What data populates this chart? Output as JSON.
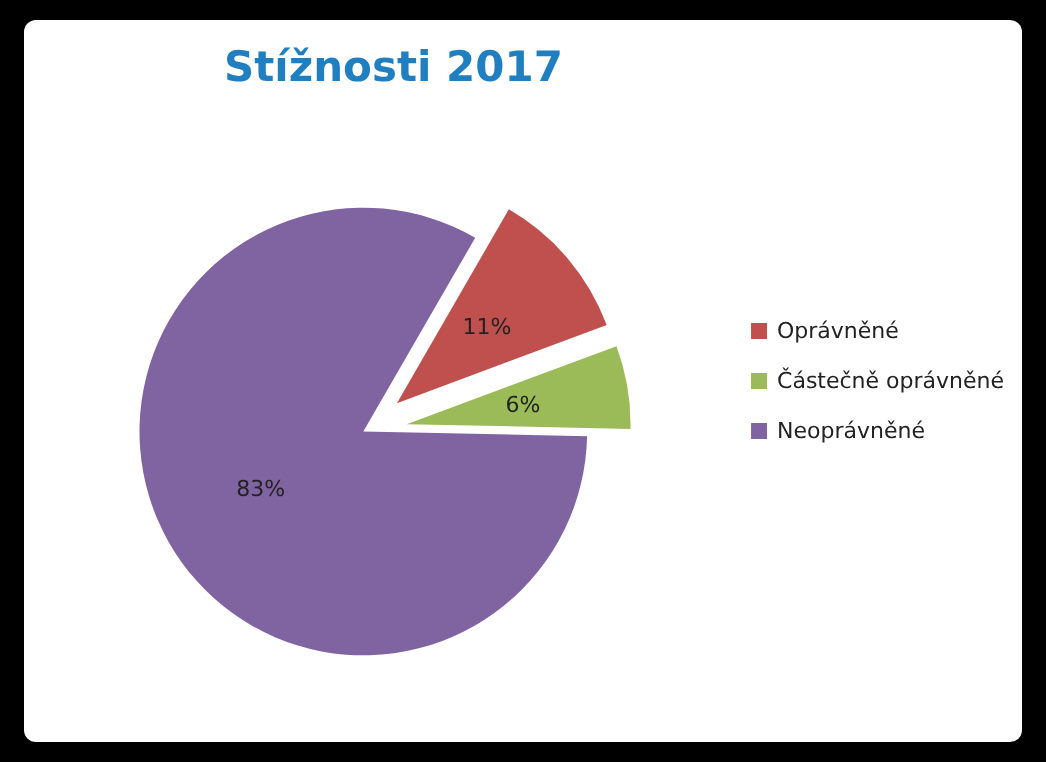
{
  "chart_data": {
    "type": "pie",
    "title": "Stížnosti 2017",
    "categories": [
      "Oprávněné",
      "Částečně oprávněné",
      "Neoprávněné"
    ],
    "values": [
      11,
      6,
      83
    ],
    "colors": [
      "#c0504d",
      "#9bbb59",
      "#8064a2"
    ],
    "value_labels": [
      "11%",
      "6%",
      "83%"
    ],
    "legend": "right"
  }
}
